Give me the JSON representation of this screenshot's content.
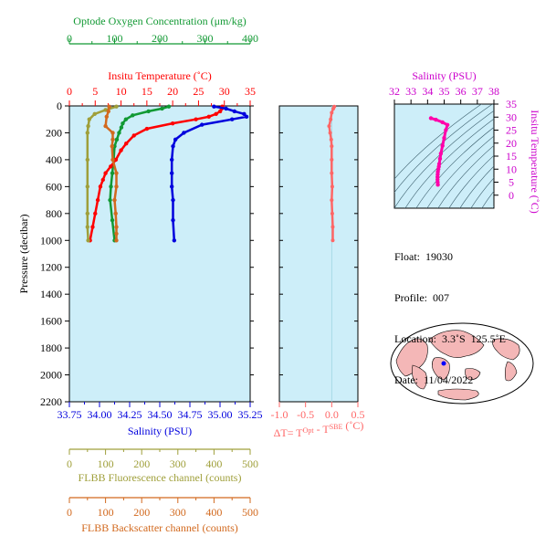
{
  "colors": {
    "oxygen": "#119933",
    "temperature": "#ff0000",
    "salinity": "#0000dd",
    "fluorescence": "#9f9f3a",
    "backscatter": "#d2691e",
    "delta_t": "#ff6666",
    "ts_title": "#cc00cc",
    "plot_bg": "#cdeef9",
    "land": "#f4b7b7",
    "ocean": "#ffffff"
  },
  "float_info": {
    "float": "Float:  19030",
    "profile": "Profile:  007",
    "location": "Location:  3.3˚S  125.5˚E",
    "date": "Date:  11/04/2022"
  },
  "chart_data": [
    {
      "type": "line",
      "name": "main-profile",
      "ylabel": "Pressure (decibar)",
      "ylim": [
        2200,
        0
      ],
      "y_ticks": [
        "0",
        "200",
        "400",
        "600",
        "800",
        "1000",
        "1200",
        "1400",
        "1600",
        "1800",
        "2000",
        "2200"
      ],
      "grid": false,
      "axes": {
        "oxygen": {
          "title": "Optode Oxygen Concentration (μm/kg)",
          "range": [
            0,
            400
          ],
          "ticks": [
            "0",
            "100",
            "200",
            "300",
            "400"
          ]
        },
        "temperature": {
          "title": "Insitu Temperature (˚C)",
          "range": [
            0,
            35
          ],
          "ticks": [
            "0",
            "5",
            "10",
            "15",
            "20",
            "25",
            "30",
            "35"
          ]
        },
        "salinity": {
          "title": "Salinity (PSU)",
          "range": [
            33.75,
            35.25
          ],
          "ticks": [
            "33.75",
            "34.00",
            "34.25",
            "34.50",
            "34.75",
            "35.00",
            "35.25"
          ]
        },
        "fluorescence": {
          "title": "FLBB Fluorescence channel (counts)",
          "range": [
            0,
            500
          ],
          "ticks": [
            "0",
            "100",
            "200",
            "300",
            "400",
            "500"
          ]
        },
        "backscatter": {
          "title": "FLBB Backscatter channel (counts)",
          "range": [
            0,
            500
          ],
          "ticks": [
            "0",
            "100",
            "200",
            "300",
            "400",
            "500"
          ]
        }
      },
      "series": [
        {
          "key": "oxygen",
          "axis": "oxygen",
          "x": [
            220,
            205,
            175,
            140,
            125,
            118,
            115,
            110,
            105,
            100,
            98,
            95,
            92,
            90,
            95,
            100
          ],
          "y": [
            5,
            20,
            40,
            70,
            100,
            130,
            160,
            200,
            250,
            300,
            400,
            500,
            600,
            700,
            850,
            1000
          ]
        },
        {
          "key": "temperature",
          "axis": "temperature",
          "x": [
            29.6,
            29.5,
            29.2,
            28.4,
            27.0,
            24.5,
            20.0,
            15.0,
            12.5,
            11.0,
            10.0,
            9.0,
            8.0,
            7.0,
            6.5,
            6.0,
            5.5,
            5.0,
            4.5,
            4.0
          ],
          "y": [
            5,
            20,
            40,
            60,
            80,
            100,
            130,
            170,
            220,
            280,
            330,
            400,
            450,
            500,
            550,
            600,
            700,
            800,
            900,
            1000
          ]
        },
        {
          "key": "salinity",
          "axis": "salinity",
          "x": [
            34.95,
            35.05,
            35.12,
            35.2,
            35.22,
            35.1,
            34.85,
            34.7,
            34.63,
            34.61,
            34.6,
            34.6,
            34.6,
            34.61,
            34.61,
            34.62
          ],
          "y": [
            5,
            20,
            40,
            60,
            80,
            100,
            140,
            200,
            250,
            300,
            400,
            500,
            600,
            700,
            850,
            1000
          ]
        },
        {
          "key": "fluorescence",
          "axis": "fluorescence",
          "x": [
            130,
            100,
            70,
            55,
            52,
            50,
            50,
            50,
            50,
            50,
            52
          ],
          "y": [
            5,
            30,
            60,
            100,
            150,
            200,
            400,
            600,
            800,
            900,
            1000
          ]
        },
        {
          "key": "backscatter",
          "axis": "backscatter",
          "x": [
            110,
            108,
            103,
            100,
            120,
            120,
            118,
            120,
            130,
            130,
            125,
            128,
            130,
            130,
            130
          ],
          "y": [
            5,
            40,
            80,
            150,
            200,
            250,
            300,
            400,
            500,
            600,
            700,
            800,
            900,
            950,
            1000
          ]
        }
      ]
    },
    {
      "type": "line",
      "name": "delta-t",
      "xlabel": "ΔT= T",
      "xlabel_sup1": "Opt",
      "xlabel_mid": " - T",
      "xlabel_sup2": "SBE",
      "xlabel_unit": " (˚C)",
      "xlim": [
        -1.0,
        0.5
      ],
      "x_ticks": [
        "-1.0",
        "-0.5",
        "0.0",
        "0.5"
      ],
      "ylim": [
        2200,
        0
      ],
      "series": [
        {
          "key": "delta_t",
          "x": [
            0.05,
            0.03,
            0.0,
            -0.02,
            -0.05,
            -0.03,
            -0.01,
            0.0,
            0.0,
            0.0,
            0.01,
            0.0,
            0.01,
            0.02,
            0.02
          ],
          "y": [
            5,
            20,
            50,
            100,
            150,
            200,
            250,
            300,
            400,
            500,
            600,
            700,
            800,
            900,
            1000
          ]
        }
      ]
    },
    {
      "type": "scatter",
      "name": "ts-diagram",
      "xlabel": "Salinity (PSU)",
      "ylabel": "Insitu Temperature (˚C)",
      "xlim": [
        32,
        38
      ],
      "ylim": [
        -5,
        35
      ],
      "x_ticks": [
        "32",
        "33",
        "34",
        "35",
        "36",
        "37",
        "38"
      ],
      "y_ticks": [
        "0",
        "5",
        "10",
        "15",
        "20",
        "25",
        "30",
        "35"
      ],
      "series": [
        {
          "key": "ts",
          "x": [
            34.2,
            34.5,
            34.9,
            35.2,
            35.1,
            35.0,
            34.9,
            34.8,
            34.75,
            34.7,
            34.68,
            34.65,
            34.62,
            34.61,
            34.6,
            34.6,
            34.61,
            34.62
          ],
          "y": [
            29.6,
            29.0,
            28.0,
            27.0,
            25.0,
            22.0,
            19.0,
            16.0,
            14.0,
            12.0,
            11.0,
            10.0,
            9.0,
            8.0,
            7.0,
            6.0,
            5.0,
            4.0
          ]
        }
      ]
    }
  ]
}
